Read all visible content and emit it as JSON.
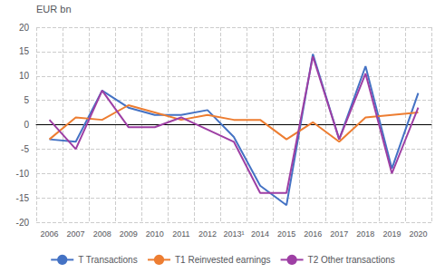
{
  "chart_data": {
    "type": "line",
    "y_label": "EUR bn",
    "categories": [
      "2006",
      "2007",
      "2008",
      "2009",
      "2010",
      "2011",
      "2012",
      "2013¹",
      "2014",
      "2015",
      "2016",
      "2017",
      "2018",
      "2019",
      "2020"
    ],
    "series": [
      {
        "name": "T Transactions",
        "color": "#4472c4",
        "values": [
          -3.0,
          -3.5,
          7.0,
          3.5,
          2.0,
          2.0,
          3.0,
          -2.5,
          -12.5,
          -16.5,
          14.5,
          -3.0,
          12.0,
          -9.0,
          6.5
        ]
      },
      {
        "name": "T1 Reinvested earnings",
        "color": "#ed7d31",
        "values": [
          -3.0,
          1.5,
          1.0,
          4.0,
          2.5,
          1.0,
          2.0,
          1.0,
          1.0,
          -3.0,
          0.5,
          -3.5,
          1.5,
          2.0,
          2.5
        ]
      },
      {
        "name": "T2 Other transactions",
        "color": "#9e3fa4",
        "values": [
          1.0,
          -5.0,
          7.0,
          -0.5,
          -0.5,
          1.5,
          -1.0,
          -3.5,
          -14.0,
          -14.0,
          14.0,
          -3.0,
          10.5,
          -10.0,
          3.5
        ]
      }
    ],
    "ylim": [
      -20,
      20
    ],
    "yticks": [
      -20,
      -15,
      -10,
      -5,
      0,
      5,
      10,
      15,
      20
    ],
    "grid": true,
    "legend": "bottom"
  }
}
